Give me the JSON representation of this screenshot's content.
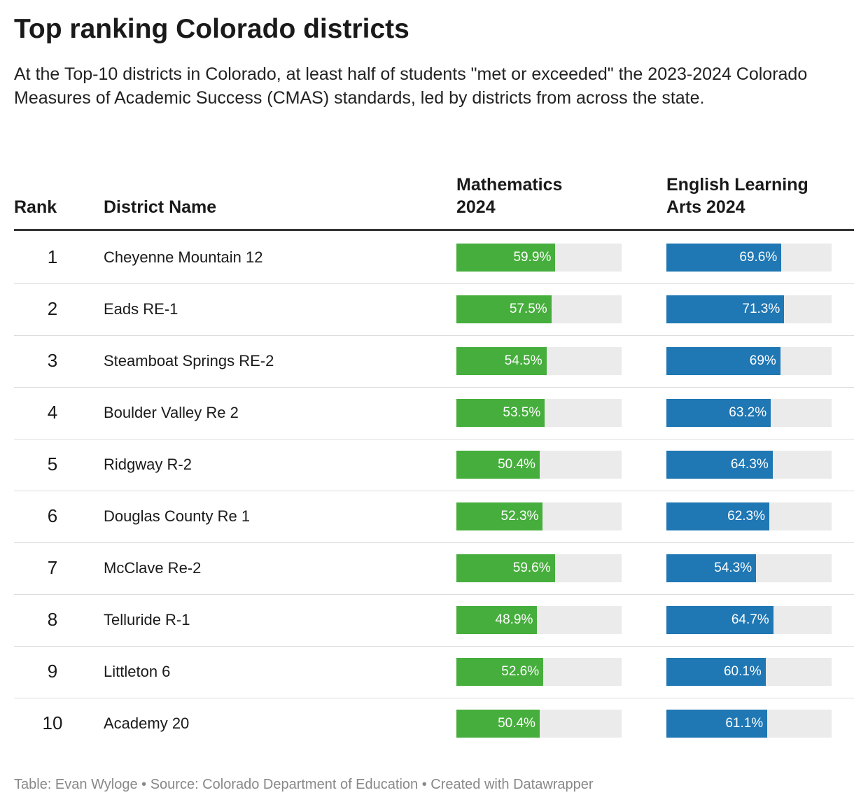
{
  "title": "Top ranking Colorado districts",
  "subtitle": "At the Top-10 districts in Colorado, at least half of students \"met or exceeded\" the 2023-2024 Colorado Measures of Academic Success (CMAS) standards, led by districts from across the state.",
  "table": {
    "columns": [
      "Rank",
      "District Name",
      "Mathematics 2024",
      "English Learning Arts 2024"
    ],
    "xlim": [
      0,
      100
    ],
    "colors": [
      "#46ae3c",
      "#1f77b4"
    ],
    "rows": [
      {
        "rank": 1,
        "district": "Cheyenne Mountain 12",
        "values": [
          59.9,
          69.6
        ],
        "value_labels": [
          "59.9%",
          "69.6%"
        ]
      },
      {
        "rank": 2,
        "district": "Eads RE-1",
        "values": [
          57.5,
          71.3
        ],
        "value_labels": [
          "57.5%",
          "71.3%"
        ]
      },
      {
        "rank": 3,
        "district": "Steamboat Springs RE-2",
        "values": [
          54.5,
          69
        ],
        "value_labels": [
          "54.5%",
          "69%"
        ]
      },
      {
        "rank": 4,
        "district": "Boulder Valley Re 2",
        "values": [
          53.5,
          63.2
        ],
        "value_labels": [
          "53.5%",
          "63.2%"
        ]
      },
      {
        "rank": 5,
        "district": "Ridgway R-2",
        "values": [
          50.4,
          64.3
        ],
        "value_labels": [
          "50.4%",
          "64.3%"
        ]
      },
      {
        "rank": 6,
        "district": "Douglas County Re 1",
        "values": [
          52.3,
          62.3
        ],
        "value_labels": [
          "52.3%",
          "62.3%"
        ]
      },
      {
        "rank": 7,
        "district": "McClave Re-2",
        "values": [
          59.6,
          54.3
        ],
        "value_labels": [
          "59.6%",
          "54.3%"
        ]
      },
      {
        "rank": 8,
        "district": "Telluride R-1",
        "values": [
          48.9,
          64.7
        ],
        "value_labels": [
          "48.9%",
          "64.7%"
        ]
      },
      {
        "rank": 9,
        "district": "Littleton 6",
        "values": [
          52.6,
          60.1
        ],
        "value_labels": [
          "52.6%",
          "60.1%"
        ]
      },
      {
        "rank": 10,
        "district": "Academy 20",
        "values": [
          50.4,
          61.1
        ],
        "value_labels": [
          "50.4%",
          "61.1%"
        ]
      }
    ]
  },
  "footer": "Table: Evan Wyloge • Source: Colorado Department of Education • Created with Datawrapper"
}
